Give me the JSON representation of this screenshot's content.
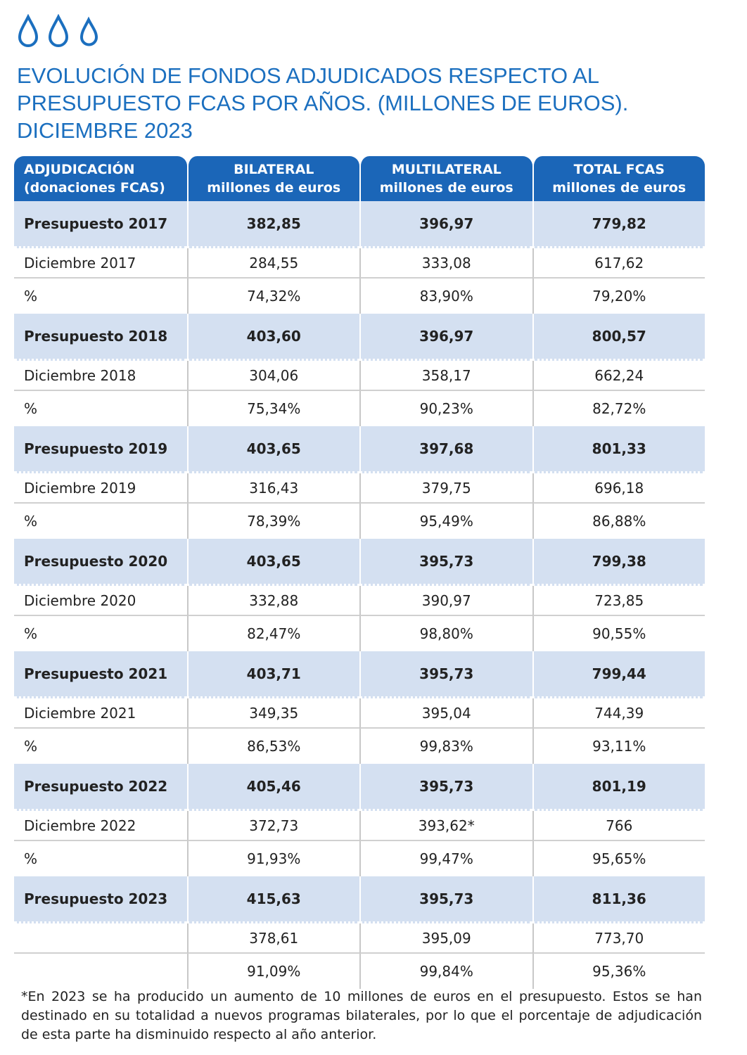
{
  "header": {
    "title_lines": [
      "EVOLUCIÓN DE FONDOS ADJUDICADOS RESPECTO AL",
      "PRESUPUESTO FCAS POR AÑOS. (MILLONES DE EUROS).",
      "DICIEMBRE 2023"
    ]
  },
  "table": {
    "columns": [
      [
        "ADJUDICACIÓN",
        "(donaciones FCAS)"
      ],
      [
        "BILATERAL",
        "millones de euros"
      ],
      [
        "MULTILATERAL",
        "millones de euros"
      ],
      [
        "TOTAL FCAS",
        "millones de euros"
      ]
    ],
    "groups": [
      {
        "budget": [
          "Presupuesto 2017",
          "382,85",
          "396,97",
          "779,82"
        ],
        "december": [
          "Diciembre 2017",
          "284,55",
          "333,08",
          "617,62"
        ],
        "percent": [
          "%",
          "74,32%",
          "83,90%",
          "79,20%"
        ]
      },
      {
        "budget": [
          "Presupuesto 2018",
          "403,60",
          "396,97",
          "800,57"
        ],
        "december": [
          "Diciembre 2018",
          "304,06",
          "358,17",
          "662,24"
        ],
        "percent": [
          "%",
          "75,34%",
          "90,23%",
          "82,72%"
        ]
      },
      {
        "budget": [
          "Presupuesto 2019",
          "403,65",
          "397,68",
          "801,33"
        ],
        "december": [
          "Diciembre 2019",
          "316,43",
          "379,75",
          "696,18"
        ],
        "percent": [
          "%",
          "78,39%",
          "95,49%",
          "86,88%"
        ]
      },
      {
        "budget": [
          "Presupuesto 2020",
          "403,65",
          "395,73",
          "799,38"
        ],
        "december": [
          "Diciembre 2020",
          "332,88",
          "390,97",
          "723,85"
        ],
        "percent": [
          "%",
          "82,47%",
          "98,80%",
          "90,55%"
        ]
      },
      {
        "budget": [
          "Presupuesto 2021",
          "403,71",
          "395,73",
          "799,44"
        ],
        "december": [
          "Diciembre 2021",
          "349,35",
          "395,04",
          "744,39"
        ],
        "percent": [
          "%",
          "86,53%",
          "99,83%",
          "93,11%"
        ]
      },
      {
        "budget": [
          "Presupuesto 2022",
          "405,46",
          "395,73",
          "801,19"
        ],
        "december": [
          "Diciembre 2022",
          "372,73",
          "393,62*",
          "766"
        ],
        "percent": [
          "%",
          "91,93%",
          "99,47%",
          "95,65%"
        ]
      },
      {
        "budget": [
          "Presupuesto 2023",
          "415,63",
          "395,73",
          "811,36"
        ],
        "december": [
          null,
          "378,61",
          "395,09",
          "773,70"
        ],
        "percent": [
          null,
          "91,09%",
          "99,84%",
          "95,36%"
        ]
      }
    ]
  },
  "footnote": "*En 2023 se ha producido un aumento de 10 millones de euros en el presupuesto. Estos se han destinado en su totalidad a nuevos programas bilaterales, por lo que el porcentaje de adjudicación de esta parte ha disminuido respecto al año anterior."
}
